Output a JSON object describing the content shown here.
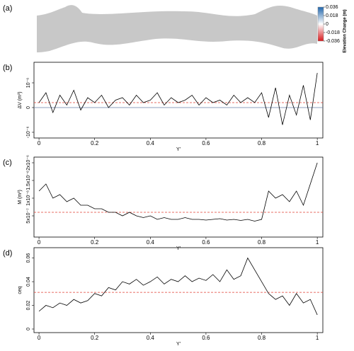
{
  "chart_data": [
    {
      "type": "map",
      "panel": "(a)",
      "colorbar": {
        "label": "Elevation Change (m)",
        "lim": [
          -0.036,
          0.036
        ],
        "ticks": [
          0.036,
          0.018,
          0,
          -0.018,
          -0.036
        ],
        "colors": [
          "#2166ac",
          "#ffffff",
          "#d7191c"
        ]
      },
      "color": "#c8c8c8"
    },
    {
      "type": "line",
      "panel": "(b)",
      "xlabel": "Y'",
      "ylabel": "ΔV (m³)",
      "x": [
        0,
        0.025,
        0.05,
        0.075,
        0.1,
        0.125,
        0.15,
        0.175,
        0.2,
        0.225,
        0.25,
        0.275,
        0.3,
        0.325,
        0.35,
        0.375,
        0.4,
        0.425,
        0.45,
        0.475,
        0.5,
        0.525,
        0.55,
        0.575,
        0.6,
        0.625,
        0.65,
        0.675,
        0.7,
        0.725,
        0.75,
        0.775,
        0.8,
        0.825,
        0.85,
        0.875,
        0.9,
        0.925,
        0.95,
        0.975,
        1
      ],
      "series": [
        {
          "color": "#000000",
          "values": [
            2e-07,
            6e-07,
            -2e-07,
            5e-07,
            1e-07,
            7e-07,
            -1e-07,
            4e-07,
            2e-07,
            5e-07,
            0,
            3e-07,
            4e-07,
            1e-07,
            5e-07,
            2e-07,
            3e-07,
            6e-07,
            1e-07,
            4e-07,
            2e-07,
            3e-07,
            5e-07,
            1e-07,
            4e-07,
            2e-07,
            3e-07,
            1e-07,
            5e-07,
            2e-07,
            4e-07,
            2e-07,
            6e-07,
            -4e-07,
            8e-07,
            -7e-07,
            5e-07,
            -3e-07,
            9e-07,
            -5e-07,
            1.4e-06
          ]
        }
      ],
      "xlim": [
        -0.018,
        1.02
      ],
      "xticks": [
        0,
        0.2,
        0.4,
        0.6,
        0.8,
        1
      ],
      "ylim": [
        -1.23e-06,
        1.83e-06
      ],
      "yticks": [
        {
          "value": -1e-06,
          "label": "-10⁻⁶"
        },
        0,
        {
          "value": 1e-06,
          "label": "10⁻⁶"
        }
      ],
      "ref_lines": [
        {
          "value": 0,
          "color": "#6a7fa8",
          "dash": false
        },
        {
          "value": 2e-07,
          "color": "#e03c31",
          "dash": true
        }
      ]
    },
    {
      "type": "line",
      "panel": "(c)",
      "xlabel": "Y'",
      "ylabel": "M (m³)",
      "x": [
        0,
        0.025,
        0.05,
        0.075,
        0.1,
        0.125,
        0.15,
        0.175,
        0.2,
        0.225,
        0.25,
        0.275,
        0.3,
        0.325,
        0.35,
        0.375,
        0.4,
        0.425,
        0.45,
        0.475,
        0.5,
        0.525,
        0.55,
        0.575,
        0.6,
        0.625,
        0.65,
        0.675,
        0.7,
        0.725,
        0.75,
        0.775,
        0.8,
        0.825,
        0.85,
        0.875,
        0.9,
        0.925,
        0.95,
        0.975,
        1
      ],
      "series": [
        {
          "color": "#000000",
          "values": [
            1.2e-06,
            1.4e-06,
            1e-06,
            1.1e-06,
            9e-07,
            1e-06,
            8e-07,
            8e-07,
            7e-07,
            7e-07,
            6e-07,
            6e-07,
            5e-07,
            6e-07,
            5e-07,
            4.5e-07,
            5e-07,
            4e-07,
            4.5e-07,
            4e-07,
            4e-07,
            4.5e-07,
            4e-07,
            4e-07,
            3.8e-07,
            4e-07,
            4.2e-07,
            3.8e-07,
            4e-07,
            3.7e-07,
            4e-07,
            3.5e-07,
            4e-07,
            1.2e-06,
            1e-06,
            1.1e-06,
            9e-07,
            1.2e-06,
            8e-07,
            1.4e-06,
            2e-06
          ]
        }
      ],
      "xlim": [
        -0.018,
        1.02
      ],
      "xticks": [
        0,
        0.2,
        0.4,
        0.6,
        0.8,
        1
      ],
      "ylim": [
        -1e-07,
        2.16e-06
      ],
      "yticks": [
        {
          "value": 5e-07,
          "label": "5x10⁻⁷"
        },
        {
          "value": 1e-06,
          "label": "1x10⁻⁶"
        },
        {
          "value": 1.5e-06,
          "label": "1.5x10⁻⁶"
        },
        {
          "value": 2e-06,
          "label": "2x10⁻⁶"
        }
      ],
      "ref_lines": [
        {
          "value": 6e-07,
          "color": "#e03c31",
          "dash": true
        }
      ]
    },
    {
      "type": "line",
      "panel": "(d)",
      "xlabel": "Y'",
      "ylabel": "ceq",
      "x": [
        0,
        0.025,
        0.05,
        0.075,
        0.1,
        0.125,
        0.15,
        0.175,
        0.2,
        0.225,
        0.25,
        0.275,
        0.3,
        0.325,
        0.35,
        0.375,
        0.4,
        0.425,
        0.45,
        0.475,
        0.5,
        0.525,
        0.55,
        0.575,
        0.6,
        0.625,
        0.65,
        0.675,
        0.7,
        0.725,
        0.75,
        0.775,
        0.8,
        0.825,
        0.85,
        0.875,
        0.9,
        0.925,
        0.95,
        0.975,
        1
      ],
      "series": [
        {
          "color": "#000000",
          "values": [
            0.015,
            0.02,
            0.018,
            0.022,
            0.02,
            0.025,
            0.022,
            0.024,
            0.03,
            0.028,
            0.035,
            0.033,
            0.04,
            0.038,
            0.042,
            0.037,
            0.04,
            0.044,
            0.038,
            0.042,
            0.04,
            0.045,
            0.04,
            0.043,
            0.041,
            0.046,
            0.04,
            0.05,
            0.042,
            0.045,
            0.06,
            0.05,
            0.04,
            0.03,
            0.025,
            0.028,
            0.02,
            0.03,
            0.022,
            0.025,
            0.012
          ]
        }
      ],
      "xlim": [
        -0.018,
        1.02
      ],
      "xticks": [
        0,
        0.2,
        0.4,
        0.6,
        0.8,
        1
      ],
      "ylim": [
        -0.003,
        0.0687
      ],
      "yticks": [
        0,
        0.02,
        0.04,
        0.06
      ],
      "ref_lines": [
        {
          "value": 0.031,
          "color": "#e03c31",
          "dash": true
        }
      ]
    }
  ]
}
